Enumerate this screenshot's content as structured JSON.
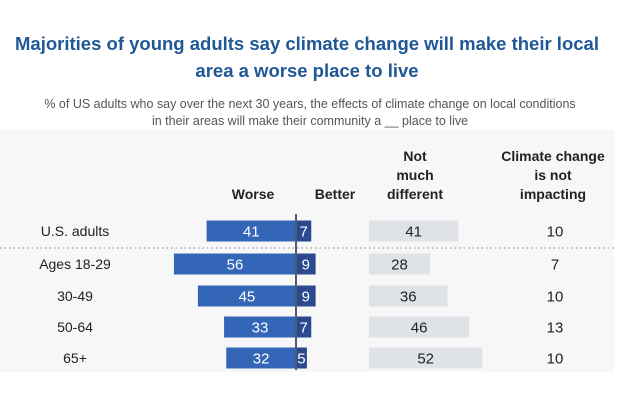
{
  "title": "Majorities of young adults say climate change will make their local area a worse place to live",
  "subtitle": "% of US adults who say over the next 30 years, the effects of climate change on local conditions in their areas will make their community a __ place to live",
  "chart_data": {
    "type": "bar",
    "orientation": "horizontal-diverging",
    "categories": [
      "U.S. adults",
      "Ages 18-29",
      "30-49",
      "50-64",
      "65+"
    ],
    "series": [
      {
        "name": "Worse",
        "values": [
          41,
          56,
          45,
          33,
          32
        ],
        "color": "#3466b8"
      },
      {
        "name": "Better",
        "values": [
          7,
          9,
          9,
          7,
          5
        ],
        "color": "#2b4a8e"
      },
      {
        "name": "Not much different",
        "values": [
          41,
          28,
          36,
          46,
          52
        ],
        "color": "#dfe3e7"
      },
      {
        "name": "Climate change is not impacting",
        "values": [
          10,
          7,
          10,
          13,
          10
        ]
      }
    ],
    "headers": {
      "worse": "Worse",
      "better": "Better",
      "not_much_different": [
        "Not",
        "much",
        "different"
      ],
      "not_impacting": [
        "Climate change",
        "is not",
        "impacting"
      ]
    }
  }
}
